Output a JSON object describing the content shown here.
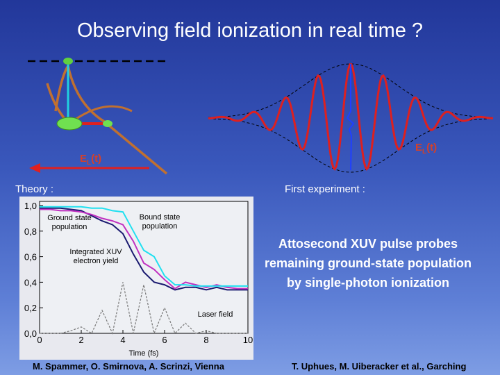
{
  "title": "Observing field ionization in real time ?",
  "diagram": {
    "left_field_label": {
      "base": "E",
      "sub": "L",
      "rest": "(t)"
    },
    "right_field_label": {
      "base": "E",
      "sub": "L",
      "rest": "(t)"
    }
  },
  "theory_label": "Theory :",
  "experiment_label": "First experiment :",
  "experiment_text": "Attosecond XUV pulse probes remaining ground-state population by single-photon ionization",
  "chart_data": {
    "type": "line",
    "xlabel": "Time (fs)",
    "x": [
      0,
      0.5,
      1,
      1.5,
      2,
      2.5,
      3,
      3.5,
      4,
      4.5,
      5,
      5.5,
      6,
      6.5,
      7,
      7.5,
      8,
      8.5,
      9,
      9.5,
      10
    ],
    "xlim": [
      0,
      10
    ],
    "xticks": [
      0,
      2,
      4,
      6,
      8,
      10
    ],
    "ylim": [
      0,
      1.0
    ],
    "yticks": [
      {
        "value": 0,
        "label": "0,0"
      },
      {
        "value": 0.2,
        "label": "0,2"
      },
      {
        "value": 0.4,
        "label": "0,4"
      },
      {
        "value": 0.6,
        "label": "0,6"
      },
      {
        "value": 0.8,
        "label": "0,8"
      },
      {
        "value": 1.0,
        "label": "1,0"
      }
    ],
    "series": [
      {
        "name": "Ground state population",
        "color": "#20e0f0",
        "values": [
          0.99,
          0.99,
          0.99,
          0.99,
          0.99,
          0.98,
          0.98,
          0.96,
          0.95,
          0.8,
          0.65,
          0.6,
          0.45,
          0.38,
          0.38,
          0.37,
          0.37,
          0.37,
          0.37,
          0.37,
          0.37
        ]
      },
      {
        "name": "Bound state population",
        "color": "#c030c0",
        "values": [
          0.97,
          0.97,
          0.96,
          0.96,
          0.95,
          0.93,
          0.9,
          0.88,
          0.85,
          0.72,
          0.55,
          0.5,
          0.42,
          0.35,
          0.4,
          0.38,
          0.36,
          0.38,
          0.36,
          0.35,
          0.35
        ]
      },
      {
        "name": "Integrated XUV electron yield",
        "color": "#1a1a70",
        "values": [
          0.98,
          0.98,
          0.98,
          0.97,
          0.96,
          0.92,
          0.88,
          0.85,
          0.78,
          0.62,
          0.48,
          0.4,
          0.38,
          0.34,
          0.36,
          0.36,
          0.34,
          0.36,
          0.34,
          0.34,
          0.34
        ]
      },
      {
        "name": "Laser field",
        "color": "#777777",
        "dashed": true,
        "values": [
          0,
          0,
          0,
          0.02,
          0.05,
          0,
          0.18,
          0,
          0.4,
          0,
          0.38,
          0,
          0.2,
          0,
          0.08,
          0,
          0.02,
          0,
          0,
          0,
          0
        ]
      }
    ]
  },
  "footer": {
    "left": "M. Spammer, O. Smirnova, A. Scrinzi, Vienna",
    "right": "T. Uphues, M. Uiberacker et al., Garching"
  }
}
